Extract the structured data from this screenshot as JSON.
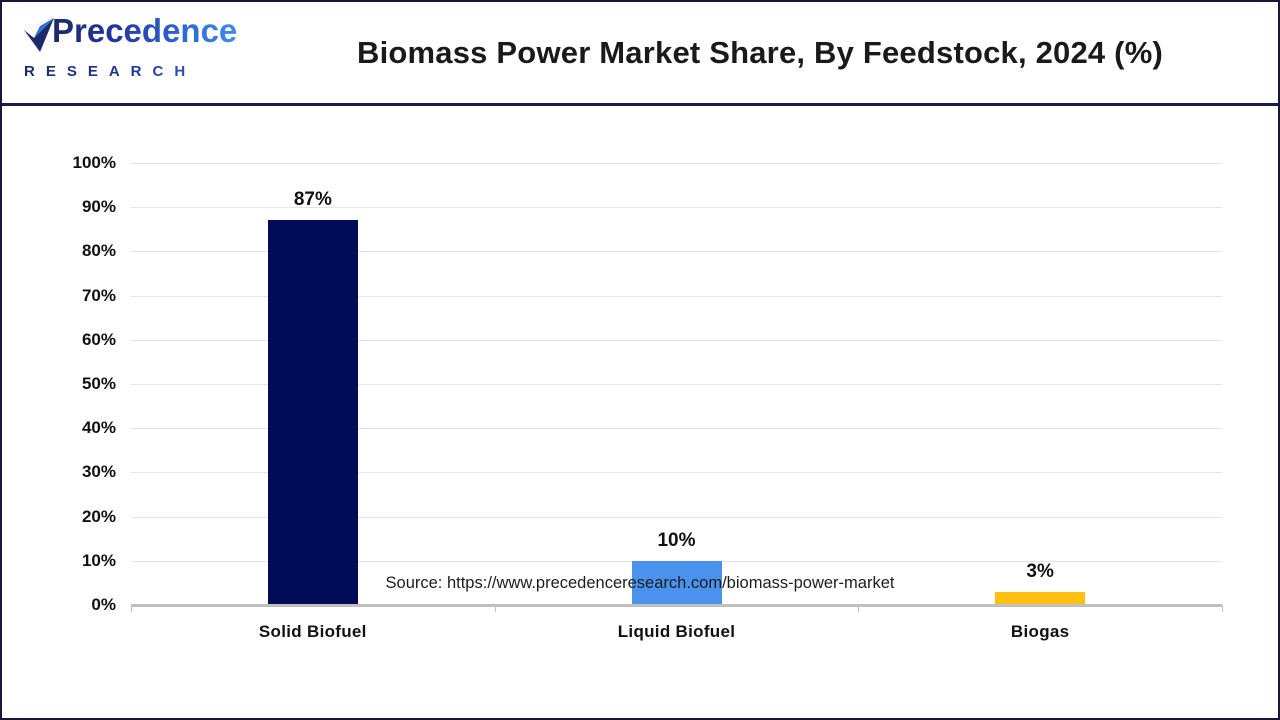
{
  "header": {
    "logo": {
      "brand": "Precedence",
      "sub": "RESEARCH",
      "navy": "#1b2a6b",
      "blue": "#2f6fd8"
    },
    "title": "Biomass Power Market Share, By Feedstock, 2024 (%)"
  },
  "chart_data": {
    "type": "bar",
    "title": "Biomass Power Market Share, By Feedstock, 2024 (%)",
    "categories": [
      "Solid Biofuel",
      "Liquid Biofuel",
      "Biogas"
    ],
    "values": [
      87,
      10,
      3
    ],
    "value_labels": [
      "87%",
      "10%",
      "3%"
    ],
    "bar_colors": [
      "#020b57",
      "#4b92ee",
      "#fdc010"
    ],
    "xlabel": "",
    "ylabel": "",
    "ylim": [
      0,
      100
    ],
    "ytick_step": 10,
    "ytick_suffix": "%",
    "grid": "horizontal-light-gray",
    "legend": "none",
    "axis_color": "#bfbfbf",
    "gridline_color": "#e4e4e4"
  },
  "footer": {
    "source": "Source: https://www.precedenceresearch.com/biomass-power-market"
  }
}
